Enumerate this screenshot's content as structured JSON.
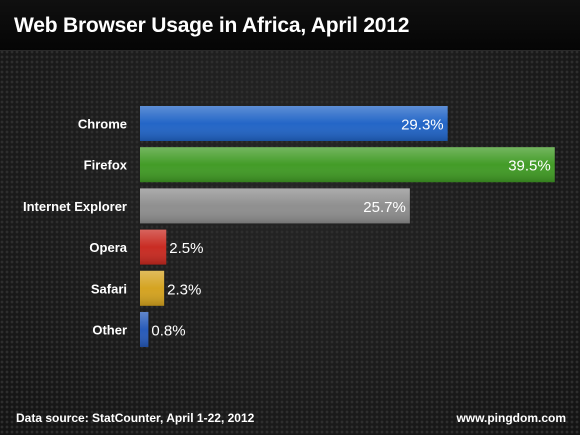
{
  "colors": {
    "Chrome": "#1f63c6",
    "Firefox": "#3f9a23",
    "Internet Explorer": "#8d8d8d",
    "Opera": "#c8281f",
    "Safari": "#d4a21d",
    "Other": "#2458b8"
  },
  "chart_data": {
    "type": "bar",
    "orientation": "horizontal",
    "title": "Web Browser Usage in Africa, April 2012",
    "categories": [
      "Chrome",
      "Firefox",
      "Internet Explorer",
      "Opera",
      "Safari",
      "Other"
    ],
    "values": [
      29.3,
      39.5,
      25.7,
      2.5,
      2.3,
      0.8
    ],
    "value_labels": [
      "29.3%",
      "39.5%",
      "25.7%",
      "2.5%",
      "2.3%",
      "0.8%"
    ],
    "xlim": [
      0,
      40
    ],
    "grid": false,
    "legend": "none"
  },
  "footer": {
    "source": "Data source: StatCounter, April 1-22, 2012",
    "site": "www.pingdom.com"
  }
}
